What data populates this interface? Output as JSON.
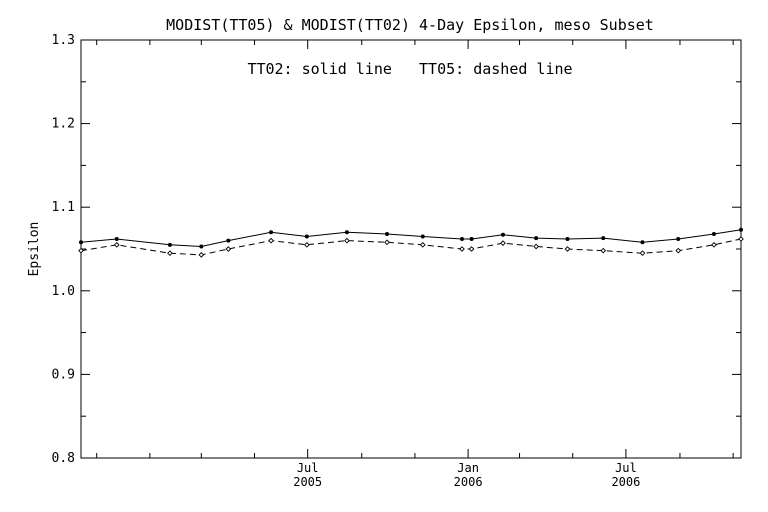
{
  "chart_data": {
    "type": "line",
    "title": "MODIST(TT05) & MODIST(TT02) 4-Day Epsilon, meso Subset",
    "annotation": "TT02: solid line   TT05: dashed line",
    "xlabel": "",
    "ylabel": "Epsilon",
    "ylim": [
      0.8,
      1.3
    ],
    "yticks": [
      0.8,
      0.9,
      1.0,
      1.1,
      1.2,
      1.3
    ],
    "ytick_labels": [
      "0.8",
      "0.9",
      "1.0",
      "1.1",
      "1.2",
      "1.3"
    ],
    "xlim": [
      "2004-10-14",
      "2006-11-10"
    ],
    "x_major_ticks": [
      {
        "date": "2005-07-01",
        "line1": "Jul",
        "line2": "2005"
      },
      {
        "date": "2006-01-01",
        "line1": "Jan",
        "line2": "2006"
      },
      {
        "date": "2006-07-01",
        "line1": "Jul",
        "line2": "2006"
      }
    ],
    "x_minor_ticks": [
      "2004-11-01",
      "2005-01-01",
      "2005-03-01",
      "2005-05-01",
      "2005-09-01",
      "2005-11-01",
      "2006-03-01",
      "2006-05-01",
      "2006-09-01",
      "2006-11-01"
    ],
    "x": [
      "2004-10-14",
      "2004-11-24",
      "2005-01-24",
      "2005-03-01",
      "2005-04-01",
      "2005-05-20",
      "2005-06-30",
      "2005-08-15",
      "2005-09-30",
      "2005-11-10",
      "2005-12-25",
      "2006-01-05",
      "2006-02-10",
      "2006-03-20",
      "2006-04-25",
      "2006-06-05",
      "2006-07-20",
      "2006-08-30",
      "2006-10-10",
      "2006-11-10"
    ],
    "series": [
      {
        "name": "TT02",
        "style": "solid",
        "values": [
          1.058,
          1.062,
          1.055,
          1.053,
          1.06,
          1.07,
          1.065,
          1.07,
          1.068,
          1.065,
          1.062,
          1.062,
          1.067,
          1.063,
          1.062,
          1.063,
          1.058,
          1.062,
          1.068,
          1.073
        ]
      },
      {
        "name": "TT05",
        "style": "dashed",
        "values": [
          1.048,
          1.055,
          1.045,
          1.043,
          1.05,
          1.06,
          1.055,
          1.06,
          1.058,
          1.055,
          1.05,
          1.05,
          1.057,
          1.053,
          1.05,
          1.048,
          1.045,
          1.048,
          1.055,
          1.062
        ]
      }
    ]
  }
}
